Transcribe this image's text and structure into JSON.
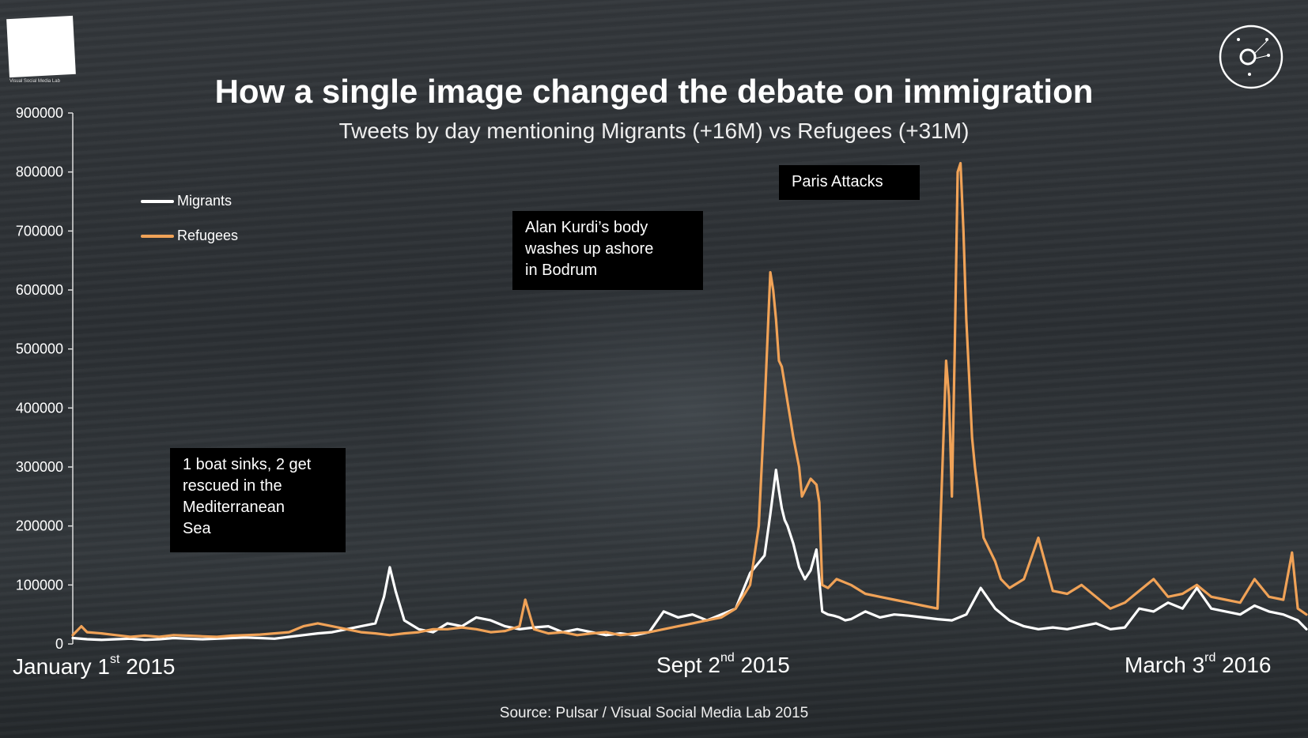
{
  "title": "How a single image changed the debate on immigration",
  "subtitle": "Tweets by day mentioning Migrants (+16M) vs Refugees (+31M)",
  "source": "Source: Pulsar / Visual Social Media Lab 2015",
  "logo": {
    "text": "Visual Social Media Lab",
    "icon": "square-logo-icon"
  },
  "corner_icon": "network-circle-icon",
  "annotations": [
    {
      "id": "boat",
      "lines": [
        "1 boat sinks, 2 get",
        "rescued in the",
        "Mediterranean",
        "Sea"
      ]
    },
    {
      "id": "kurdi",
      "lines": [
        "Alan Kurdi’s body",
        "washes up ashore",
        "in Bodrum"
      ]
    },
    {
      "id": "paris",
      "lines": [
        "Paris Attacks"
      ]
    }
  ],
  "x_labels": [
    {
      "main": "January 1",
      "sup": "st",
      "rest": " 2015"
    },
    {
      "main": "Sept 2",
      "sup": "nd",
      "rest": " 2015"
    },
    {
      "main": "March 3",
      "sup": "rd",
      "rest": " 2016"
    }
  ],
  "colors": {
    "migrants": "#ffffff",
    "refugees": "#f0a257",
    "axis": "#dddddd"
  },
  "chart_data": {
    "type": "line",
    "title": "How a single image changed the debate on immigration",
    "subtitle": "Tweets by day mentioning Migrants (+16M) vs Refugees (+31M)",
    "xlabel": "",
    "ylabel": "",
    "x_unit": "days since January 1 2015",
    "xlim": [
      0,
      428
    ],
    "ylim": [
      0,
      900000
    ],
    "yticks": [
      0,
      100000,
      200000,
      300000,
      400000,
      500000,
      600000,
      700000,
      800000,
      900000
    ],
    "legend": "top-left",
    "series": [
      {
        "name": "Migrants",
        "color": "#ffffff",
        "x": [
          0,
          5,
          10,
          15,
          20,
          25,
          30,
          35,
          40,
          45,
          50,
          55,
          60,
          65,
          70,
          75,
          80,
          85,
          90,
          95,
          100,
          105,
          108,
          110,
          112,
          115,
          120,
          125,
          130,
          135,
          140,
          145,
          150,
          155,
          160,
          165,
          170,
          175,
          180,
          185,
          190,
          195,
          200,
          205,
          210,
          215,
          220,
          225,
          230,
          235,
          240,
          242,
          244,
          245,
          246,
          247,
          248,
          250,
          252,
          254,
          256,
          258,
          260,
          262,
          264,
          266,
          268,
          270,
          275,
          280,
          285,
          290,
          295,
          300,
          305,
          310,
          315,
          320,
          325,
          330,
          335,
          340,
          345,
          350,
          355,
          360,
          365,
          370,
          375,
          380,
          385,
          390,
          395,
          400,
          405,
          410,
          415,
          420,
          425,
          428
        ],
        "values": [
          10000,
          8000,
          7000,
          8000,
          9000,
          7000,
          8000,
          10000,
          9000,
          8000,
          9000,
          10000,
          11000,
          10000,
          9000,
          12000,
          15000,
          18000,
          20000,
          25000,
          30000,
          35000,
          80000,
          130000,
          90000,
          40000,
          25000,
          20000,
          35000,
          30000,
          45000,
          40000,
          30000,
          25000,
          28000,
          30000,
          20000,
          25000,
          20000,
          15000,
          18000,
          15000,
          20000,
          55000,
          45000,
          50000,
          40000,
          50000,
          60000,
          120000,
          150000,
          220000,
          295000,
          260000,
          230000,
          210000,
          200000,
          170000,
          130000,
          110000,
          125000,
          160000,
          55000,
          50000,
          48000,
          45000,
          40000,
          42000,
          55000,
          45000,
          50000,
          48000,
          45000,
          42000,
          40000,
          50000,
          95000,
          60000,
          40000,
          30000,
          25000,
          28000,
          25000,
          30000,
          35000,
          25000,
          28000,
          60000,
          55000,
          70000,
          60000,
          95000,
          60000,
          55000,
          50000,
          65000,
          55000,
          50000,
          40000,
          25000
        ]
      },
      {
        "name": "Refugees",
        "color": "#f0a257",
        "x": [
          0,
          3,
          5,
          10,
          15,
          20,
          25,
          30,
          35,
          40,
          45,
          50,
          55,
          60,
          65,
          70,
          75,
          80,
          85,
          90,
          95,
          100,
          105,
          110,
          115,
          120,
          125,
          130,
          135,
          140,
          145,
          150,
          155,
          157,
          160,
          165,
          170,
          175,
          180,
          185,
          190,
          195,
          200,
          205,
          210,
          215,
          220,
          225,
          230,
          235,
          238,
          240,
          242,
          243,
          244,
          245,
          246,
          247,
          248,
          249,
          250,
          252,
          253,
          254,
          256,
          258,
          259,
          260,
          262,
          265,
          270,
          275,
          280,
          285,
          290,
          295,
          300,
          303,
          304,
          305,
          306,
          307,
          308,
          309,
          310,
          311,
          312,
          313,
          314,
          315,
          316,
          318,
          320,
          322,
          325,
          330,
          335,
          340,
          345,
          350,
          355,
          360,
          365,
          370,
          375,
          380,
          385,
          390,
          395,
          400,
          405,
          410,
          415,
          420,
          423,
          425,
          428
        ],
        "values": [
          15000,
          30000,
          20000,
          18000,
          15000,
          12000,
          14000,
          12000,
          15000,
          14000,
          13000,
          12000,
          14000,
          15000,
          16000,
          18000,
          20000,
          30000,
          35000,
          30000,
          25000,
          20000,
          18000,
          15000,
          18000,
          20000,
          25000,
          25000,
          28000,
          25000,
          20000,
          22000,
          30000,
          75000,
          25000,
          18000,
          20000,
          15000,
          18000,
          20000,
          15000,
          18000,
          20000,
          25000,
          30000,
          35000,
          40000,
          45000,
          60000,
          100000,
          200000,
          400000,
          630000,
          600000,
          550000,
          480000,
          470000,
          440000,
          410000,
          380000,
          350000,
          300000,
          250000,
          260000,
          280000,
          270000,
          240000,
          100000,
          95000,
          110000,
          100000,
          85000,
          80000,
          75000,
          70000,
          65000,
          60000,
          480000,
          420000,
          250000,
          500000,
          800000,
          815000,
          700000,
          550000,
          450000,
          350000,
          300000,
          260000,
          220000,
          180000,
          160000,
          140000,
          110000,
          95000,
          110000,
          180000,
          90000,
          85000,
          100000,
          80000,
          60000,
          70000,
          90000,
          110000,
          80000,
          85000,
          100000,
          80000,
          75000,
          70000,
          110000,
          80000,
          75000,
          155000,
          60000,
          50000
        ]
      }
    ],
    "annotations": [
      {
        "text": "1 boat sinks, 2 get rescued in the Mediterranean Sea",
        "x": 110
      },
      {
        "text": "Alan Kurdi’s body washes up ashore in Bodrum",
        "x": 244
      },
      {
        "text": "Paris Attacks",
        "x": 308
      }
    ],
    "x_tick_labels": [
      "January 1st 2015",
      "Sept 2nd 2015",
      "March 3rd 2016"
    ],
    "x_tick_values": [
      0,
      244,
      428
    ]
  }
}
